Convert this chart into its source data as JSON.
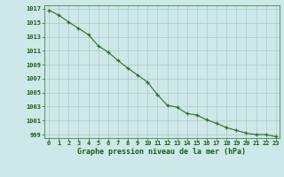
{
  "x": [
    0,
    1,
    2,
    3,
    4,
    5,
    6,
    7,
    8,
    9,
    10,
    11,
    12,
    13,
    14,
    15,
    16,
    17,
    18,
    19,
    20,
    21,
    22,
    23
  ],
  "y": [
    1016.8,
    1016.1,
    1015.1,
    1014.2,
    1013.3,
    1011.7,
    1010.8,
    1009.6,
    1008.5,
    1007.5,
    1006.5,
    1004.7,
    1003.2,
    1002.9,
    1002.0,
    1001.8,
    1001.1,
    1000.6,
    1000.0,
    999.6,
    999.2,
    999.0,
    999.0,
    998.7
  ],
  "ylim": [
    998.5,
    1017.5
  ],
  "xlim": [
    -0.5,
    23.4
  ],
  "yticks": [
    999,
    1001,
    1003,
    1005,
    1007,
    1009,
    1011,
    1013,
    1015,
    1017
  ],
  "xticks": [
    0,
    1,
    2,
    3,
    4,
    5,
    6,
    7,
    8,
    9,
    10,
    11,
    12,
    13,
    14,
    15,
    16,
    17,
    18,
    19,
    20,
    21,
    22,
    23
  ],
  "xlabel": "Graphe pression niveau de la mer (hPa)",
  "line_color": "#2d6e2d",
  "marker": "+",
  "bg_color": "#cce8e8",
  "grid_color": "#b0c8c8",
  "text_color": "#1a5c1a",
  "tick_label_fontsize": 5.0,
  "xlabel_fontsize": 6.0
}
